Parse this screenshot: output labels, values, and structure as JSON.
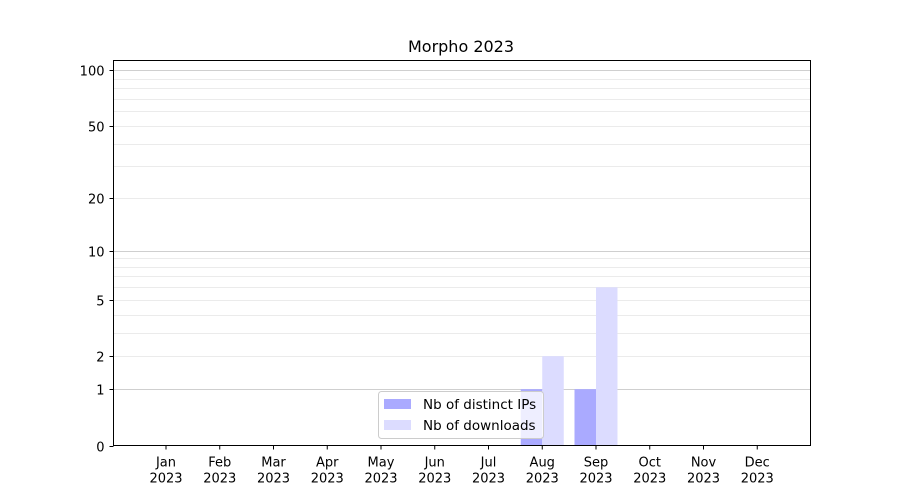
{
  "chart_data": {
    "type": "bar",
    "title": "Morpho 2023",
    "xlabel": "",
    "ylabel": "",
    "yscale": "log(1+y)",
    "ylim": [
      0,
      113
    ],
    "yticks": [
      0,
      1,
      2,
      5,
      10,
      20,
      50,
      100
    ],
    "grid": true,
    "legend_position": "lower-center",
    "categories": [
      "Jan\n2023",
      "Feb\n2023",
      "Mar\n2023",
      "Apr\n2023",
      "May\n2023",
      "Jun\n2023",
      "Jul\n2023",
      "Aug\n2023",
      "Sep\n2023",
      "Oct\n2023",
      "Nov\n2023",
      "Dec\n2023"
    ],
    "series": [
      {
        "name": "Nb of distinct IPs",
        "color": "#aaaaff",
        "values": [
          0,
          0,
          0,
          0,
          0,
          0,
          0,
          1,
          1,
          0,
          0,
          0
        ]
      },
      {
        "name": "Nb of downloads",
        "color": "#dcdcff",
        "values": [
          0,
          0,
          0,
          0,
          0,
          0,
          0,
          2,
          6,
          0,
          0,
          0
        ]
      }
    ]
  }
}
